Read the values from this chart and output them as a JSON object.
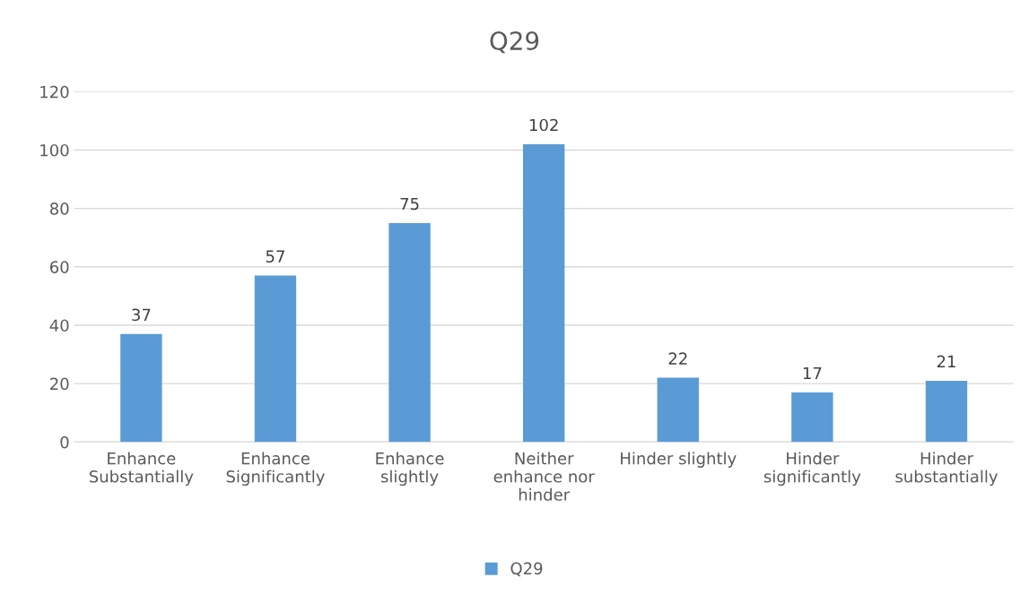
{
  "chart_data": {
    "type": "bar",
    "title": "Q29",
    "categories": [
      "Enhance\nSubstantially",
      "Enhance\nSignificantly",
      "Enhance\nslightly",
      "Neither\nenhance nor\nhinder",
      "Hinder slightly",
      "Hinder\nsignificantly",
      "Hinder\nsubstantially"
    ],
    "series": [
      {
        "name": "Q29",
        "color": "#5b9bd5",
        "values": [
          37,
          57,
          75,
          102,
          22,
          17,
          21
        ]
      }
    ],
    "ylim": [
      0,
      120
    ],
    "yticks": [
      0,
      20,
      40,
      60,
      80,
      100,
      120
    ],
    "grid": "y",
    "legend": "bottom",
    "data_labels": true
  }
}
